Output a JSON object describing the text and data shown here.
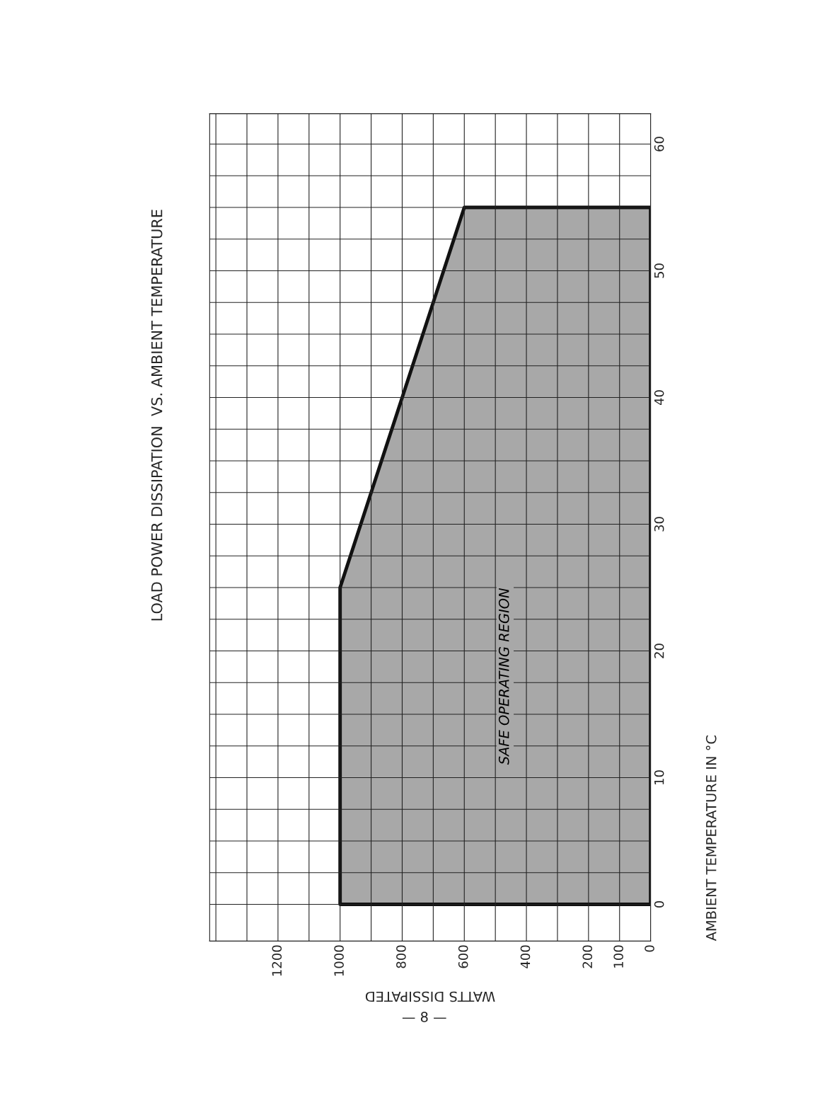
{
  "chart_data": {
    "type": "area",
    "orientation": "horizontal",
    "title": "LOAD POWER DISSIPATION  VS. AMBIENT TEMPERATURE",
    "xlabel": "WATTS DISSIPATED",
    "ylabel": "AMBIENT TEMPERATURE IN °C",
    "x": [
      0,
      25,
      55
    ],
    "series": [
      {
        "color": "#a8a8a8",
        "values": [
          1000,
          1000,
          600
        ]
      }
    ],
    "xlim": [
      1420,
      0
    ],
    "xticks": [
      0,
      100,
      200,
      {
        "value": 300,
        "label": null
      },
      400,
      {
        "value": 500,
        "label": null
      },
      600,
      {
        "value": 700,
        "label": null
      },
      800,
      {
        "value": 900,
        "label": null
      },
      1000,
      {
        "value": 1100,
        "label": null
      },
      1200,
      {
        "value": 1300,
        "label": null
      },
      {
        "value": 1400,
        "label": null
      }
    ],
    "ylim": [
      -2.9,
      62.4
    ],
    "yticks": [
      0,
      {
        "value": 2.5,
        "label": null
      },
      {
        "value": 5,
        "label": null
      },
      {
        "value": 7.5,
        "label": null
      },
      10,
      {
        "value": 12.5,
        "label": null
      },
      {
        "value": 15,
        "label": null
      },
      {
        "value": 17.5,
        "label": null
      },
      20,
      {
        "value": 22.5,
        "label": null
      },
      {
        "value": 25,
        "label": null
      },
      {
        "value": 27.5,
        "label": null
      },
      30,
      {
        "value": 32.5,
        "label": null
      },
      {
        "value": 35,
        "label": null
      },
      {
        "value": 37.5,
        "label": null
      },
      40,
      {
        "value": 42.5,
        "label": null
      },
      {
        "value": 45,
        "label": null
      },
      {
        "value": 47.5,
        "label": null
      },
      50,
      {
        "value": 52.5,
        "label": null
      },
      {
        "value": 55,
        "label": null
      },
      {
        "value": 57.5,
        "label": null
      },
      60
    ],
    "grid": true,
    "annotations": [
      "SAFE OPERATING REGION",
      "— 8 —"
    ]
  }
}
